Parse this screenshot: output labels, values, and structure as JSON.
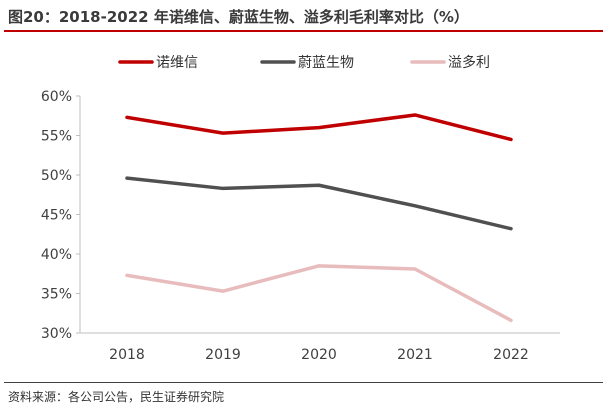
{
  "title": "图20：2018-2022 年诺维信、蔚蓝生物、溢多利毛利率对比（%）",
  "source": "资料来源：各公司公告，民生证券研究院",
  "chart_data": {
    "type": "line",
    "x": [
      "2018",
      "2019",
      "2020",
      "2021",
      "2022"
    ],
    "series": [
      {
        "name": "诺维信",
        "color": "#c00000",
        "values": [
          57.3,
          55.3,
          56.0,
          57.6,
          54.5
        ]
      },
      {
        "name": "蔚蓝生物",
        "color": "#505050",
        "values": [
          49.6,
          48.3,
          48.7,
          46.1,
          43.2
        ]
      },
      {
        "name": "溢多利",
        "color": "#e8bcbc",
        "values": [
          37.3,
          35.3,
          38.5,
          38.1,
          31.6
        ]
      }
    ],
    "yticks": [
      "30%",
      "35%",
      "40%",
      "45%",
      "50%",
      "55%",
      "60%"
    ],
    "ylim": [
      30,
      60
    ],
    "legend": "top",
    "grid": false
  }
}
